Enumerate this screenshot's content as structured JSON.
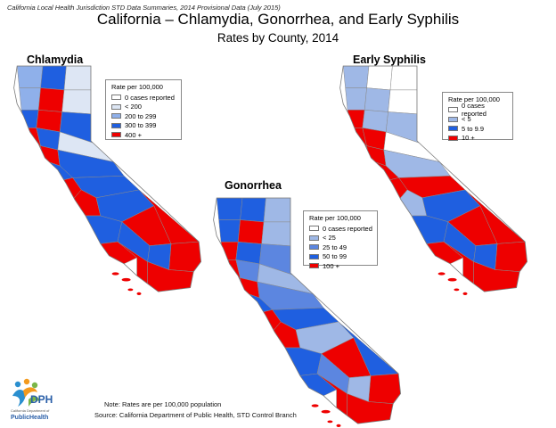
{
  "header_note": "California Local Health Jurisdiction STD Data Summaries, 2014 Provisional Data (July 2015)",
  "title": "California – Chlamydia, Gonorrhea, and Early Syphilis",
  "subtitle": "Rates by County, 2014",
  "colors": {
    "zero": "#ffffff",
    "lightest": "#dde6f4",
    "light": "#9fb8e6",
    "medium": "#5c86e0",
    "dark": "#1f5fe0",
    "red": "#ee0000",
    "border": "#8a8a8a"
  },
  "maps": {
    "chlamydia": {
      "title": "Chlamydia",
      "legend_title": "Rate per 100,000",
      "legend": [
        {
          "label": "0 cases reported",
          "color": "#ffffff"
        },
        {
          "label": "< 200",
          "color": "#dde6f4"
        },
        {
          "label": "200 to 299",
          "color": "#8fb0ea"
        },
        {
          "label": "300 to 399",
          "color": "#1f5fe0"
        },
        {
          "label": "400 +",
          "color": "#ee0000"
        }
      ]
    },
    "gonorrhea": {
      "title": "Gonorrhea",
      "legend_title": "Rate per 100,000",
      "legend": [
        {
          "label": "0 cases reported",
          "color": "#ffffff"
        },
        {
          "label": "< 25",
          "color": "#9fb8e6"
        },
        {
          "label": "25 to 49",
          "color": "#5c86e0"
        },
        {
          "label": "50 to 99",
          "color": "#1f5fe0"
        },
        {
          "label": "100 +",
          "color": "#ee0000"
        }
      ]
    },
    "syphilis": {
      "title": "Early Syphilis",
      "legend_title": "Rate per 100,000",
      "legend": [
        {
          "label": "0 cases reported",
          "color": "#ffffff"
        },
        {
          "label": "< 5",
          "color": "#9fb8e6"
        },
        {
          "label": "5 to 9.9",
          "color": "#1f5fe0"
        },
        {
          "label": "10 +",
          "color": "#ee0000"
        }
      ]
    }
  },
  "footer": {
    "note": "Note:  Rates are per 100,000 population",
    "source": "Source:  California Department of Public Health, STD Control Branch"
  },
  "logo": {
    "letters": "CDPH",
    "org_line": "California Department of",
    "brand": "PublicHealth"
  }
}
